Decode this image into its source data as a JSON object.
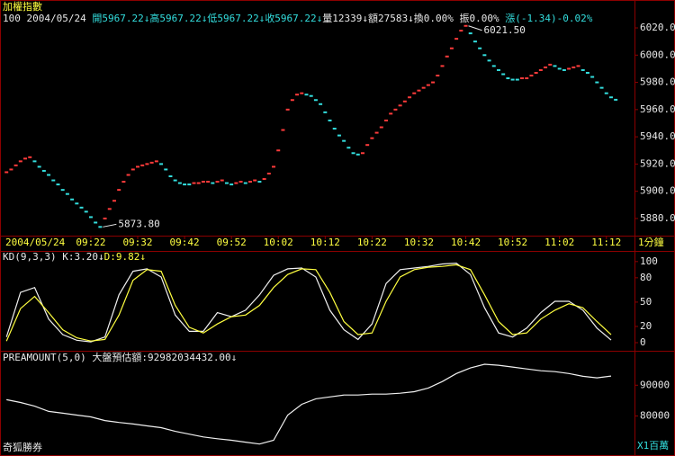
{
  "chart_data": [
    {
      "type": "dash",
      "title": "加權指數",
      "info": [
        "100",
        "2004/05/24",
        "開5967.22↓",
        "高5967.22↓",
        "低5967.22↓",
        "收5967.22↓",
        "量12339↓",
        "額27583↓",
        "換0.00%",
        "振0.00%",
        "漲(-1.34)-0.02%"
      ],
      "date": "2004/05/24",
      "period": "1分鐘",
      "up_color": "#ff3b3b",
      "down_color": "#33dede",
      "max_label": "6021.50",
      "min_label": "5873.80",
      "xlim": [
        3,
        138
      ],
      "ylim": [
        5867.4,
        6040.5
      ],
      "xticks": [
        {
          "value": 22,
          "label": "09:22"
        },
        {
          "value": 32,
          "label": "09:32"
        },
        {
          "value": 42,
          "label": "09:42"
        },
        {
          "value": 52,
          "label": "09:52"
        },
        {
          "value": 62,
          "label": "10:02"
        },
        {
          "value": 72,
          "label": "10:12"
        },
        {
          "value": 82,
          "label": "10:22"
        },
        {
          "value": 92,
          "label": "10:32"
        },
        {
          "value": 102,
          "label": "10:42"
        },
        {
          "value": 112,
          "label": "10:52"
        },
        {
          "value": 122,
          "label": "11:02"
        },
        {
          "value": 132,
          "label": "11:12"
        }
      ],
      "yticks": [
        {
          "value": 5880,
          "label": "5880.00"
        },
        {
          "value": 5900,
          "label": "5900.00"
        },
        {
          "value": 5920,
          "label": "5920.00"
        },
        {
          "value": 5940,
          "label": "5940.00"
        },
        {
          "value": 5960,
          "label": "5960.00"
        },
        {
          "value": 5980,
          "label": "5980.00"
        },
        {
          "value": 6000,
          "label": "6000.00"
        },
        {
          "value": 6020,
          "label": "6020.00"
        }
      ],
      "x": [
        4,
        5,
        6,
        7,
        8,
        9,
        10,
        11,
        12,
        13,
        14,
        15,
        16,
        17,
        18,
        19,
        20,
        21,
        22,
        23,
        24,
        25,
        26,
        27,
        28,
        29,
        30,
        31,
        32,
        33,
        34,
        35,
        36,
        37,
        38,
        39,
        40,
        41,
        42,
        43,
        44,
        45,
        46,
        47,
        48,
        49,
        50,
        51,
        52,
        53,
        54,
        55,
        56,
        57,
        58,
        59,
        60,
        61,
        62,
        63,
        64,
        65,
        66,
        67,
        68,
        69,
        70,
        71,
        72,
        73,
        74,
        75,
        76,
        77,
        78,
        79,
        80,
        81,
        82,
        83,
        84,
        85,
        86,
        87,
        88,
        89,
        90,
        91,
        92,
        93,
        94,
        95,
        96,
        97,
        98,
        99,
        100,
        101,
        102,
        103,
        104,
        105,
        106,
        107,
        108,
        109,
        110,
        111,
        112,
        113,
        114,
        115,
        116,
        117,
        118,
        119,
        120,
        121,
        122,
        123,
        124,
        125,
        126,
        127,
        128,
        129,
        130,
        131,
        132,
        133,
        134
      ],
      "values": [
        5914,
        5916,
        5919,
        5922,
        5924,
        5925,
        5922,
        5918,
        5915,
        5912,
        5908,
        5905,
        5901,
        5898,
        5894,
        5891,
        5888,
        5885,
        5881,
        5877,
        5873.8,
        5880,
        5887,
        5893,
        5901,
        5907,
        5912,
        5916,
        5918,
        5919,
        5920,
        5921,
        5922,
        5920,
        5916,
        5911,
        5908,
        5906,
        5905,
        5905,
        5906,
        5906,
        5907,
        5907,
        5906,
        5907,
        5908,
        5906,
        5905,
        5906,
        5907,
        5906,
        5907,
        5908,
        5907,
        5909,
        5913,
        5918,
        5930,
        5945,
        5960,
        5967,
        5971,
        5972,
        5971,
        5970,
        5967,
        5964,
        5958,
        5952,
        5946,
        5941,
        5937,
        5932,
        5928,
        5927,
        5928,
        5934,
        5939,
        5943,
        5947,
        5952,
        5957,
        5960,
        5963,
        5966,
        5969,
        5972,
        5974,
        5976,
        5978,
        5980,
        5985,
        5992,
        5999,
        6005,
        6012,
        6018,
        6021.5,
        6016,
        6010,
        6005,
        6000,
        5996,
        5992,
        5989,
        5986,
        5983,
        5982,
        5982,
        5983,
        5983,
        5985,
        5987,
        5989,
        5991,
        5993,
        5992,
        5990,
        5989,
        5990,
        5991,
        5992,
        5989,
        5987,
        5984,
        5980,
        5976,
        5972,
        5969,
        5967.22
      ]
    },
    {
      "type": "line",
      "title": "KD(9,3,3)",
      "xlim": [
        3,
        138
      ],
      "ylim": [
        -10,
        112
      ],
      "yticks": [
        0,
        20,
        50,
        80,
        100
      ],
      "x": [
        4,
        7,
        10,
        13,
        16,
        19,
        22,
        25,
        28,
        31,
        34,
        37,
        40,
        43,
        46,
        49,
        52,
        55,
        58,
        61,
        64,
        67,
        70,
        73,
        76,
        79,
        82,
        85,
        88,
        91,
        94,
        97,
        100,
        103,
        106,
        109,
        112,
        115,
        118,
        121,
        124,
        127,
        130,
        133
      ],
      "series": [
        {
          "name": "K:3.20↓",
          "color": "#f0f0f0",
          "values": [
            7,
            62,
            68,
            29,
            10,
            3,
            1,
            7,
            59,
            88,
            91,
            81,
            34,
            14,
            14,
            37,
            32,
            40,
            59,
            83,
            91,
            92,
            81,
            40,
            16,
            4,
            23,
            73,
            90,
            92,
            94,
            97,
            98,
            84,
            43,
            12,
            7,
            18,
            37,
            51,
            51,
            40,
            18,
            3.2
          ]
        },
        {
          "name": "D:9.82↓",
          "color": "#ffff40",
          "values": [
            2,
            42,
            57,
            37,
            16,
            6,
            2,
            4,
            34,
            77,
            90,
            88,
            46,
            19,
            12,
            23,
            32,
            34,
            46,
            68,
            84,
            91,
            90,
            62,
            26,
            10,
            12,
            51,
            81,
            90,
            93,
            94,
            96,
            90,
            59,
            26,
            10,
            12,
            29,
            40,
            48,
            43,
            26,
            9.82
          ]
        }
      ]
    },
    {
      "type": "line",
      "title": "PREAMOUNT(5,0)",
      "unit": "X1百萬",
      "footer": "奇狐勝券",
      "xlim": [
        3,
        138
      ],
      "ylim": [
        67000,
        100900
      ],
      "yticks": [
        80000,
        90000
      ],
      "x": [
        4,
        7,
        10,
        13,
        16,
        19,
        22,
        25,
        28,
        31,
        34,
        37,
        40,
        43,
        46,
        49,
        52,
        55,
        58,
        61,
        64,
        67,
        70,
        73,
        76,
        79,
        82,
        85,
        88,
        91,
        94,
        97,
        100,
        103,
        106,
        109,
        112,
        115,
        118,
        121,
        124,
        127,
        130,
        133
      ],
      "series": [
        {
          "name": "大盤預估額:92982034432.00↓",
          "color": "#f0f0f0",
          "values": [
            85300,
            84400,
            83200,
            81500,
            80900,
            80300,
            79700,
            78500,
            77900,
            77400,
            76800,
            76200,
            75000,
            74100,
            73200,
            72600,
            72100,
            71500,
            70900,
            72100,
            80300,
            83800,
            85600,
            86200,
            86800,
            86800,
            87100,
            87100,
            87400,
            87900,
            89100,
            91200,
            93800,
            95600,
            96800,
            96500,
            95900,
            95300,
            94700,
            94400,
            93800,
            92900,
            92400,
            92982
          ]
        }
      ]
    }
  ]
}
